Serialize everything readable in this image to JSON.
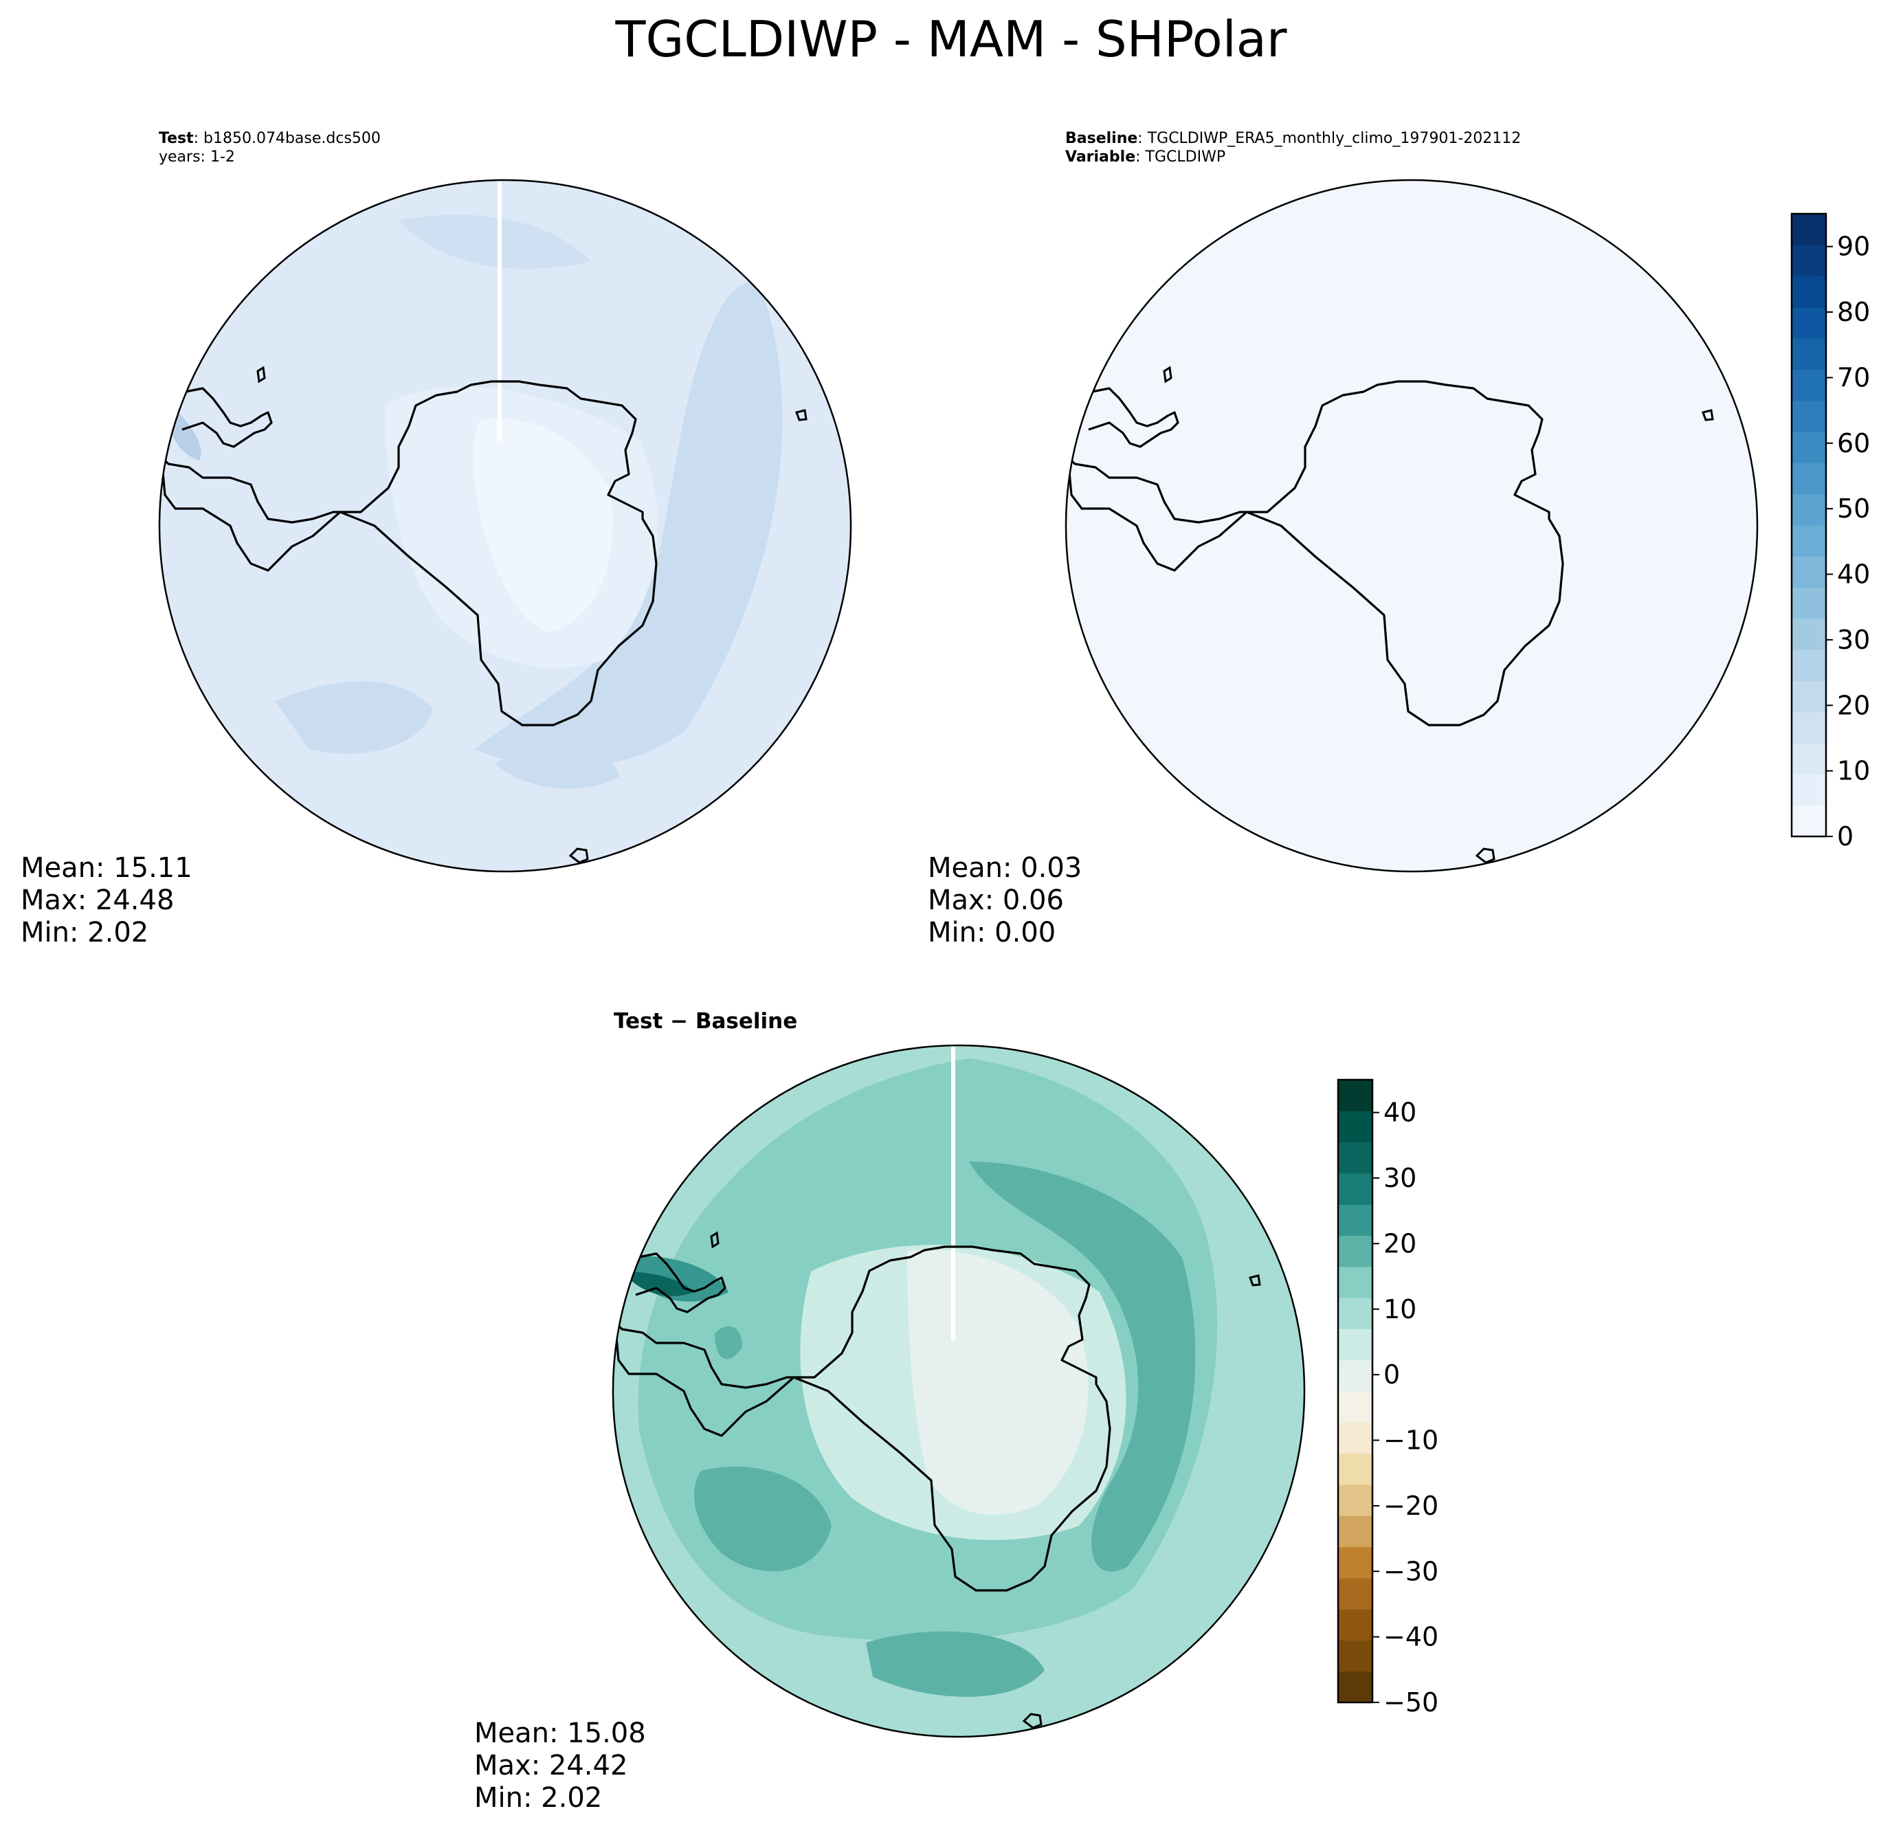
{
  "title": "TGCLDIWP - MAM - SHPolar",
  "panels": {
    "test": {
      "header": {
        "label": "Test",
        "sep": ": ",
        "case": "b1850.074base.dcs500",
        "years": "years: 1-2"
      },
      "stats": {
        "mean": "Mean: 15.11",
        "max": "Max: 24.48",
        "min": "Min:  2.02"
      }
    },
    "baseline": {
      "header": {
        "label": "Baseline",
        "sep": ": ",
        "case": "TGCLDIWP_ERA5_monthly_climo_197901-202112",
        "var_label": "Variable",
        "var_value": "TGCLDIWP"
      },
      "stats": {
        "mean": "Mean:  0.03",
        "max": "Max:  0.06",
        "min": "Min:  0.00"
      }
    },
    "diff": {
      "header": {
        "label": "Test − Baseline"
      },
      "stats": {
        "mean": "Mean: 15.08",
        "max": "Max: 24.42",
        "min": "Min:  2.02"
      }
    }
  },
  "colorbars": {
    "blues": {
      "min": 0,
      "max": 95,
      "step": 5,
      "ticks": [
        0,
        10,
        20,
        30,
        40,
        50,
        60,
        70,
        80,
        90
      ],
      "tick_labels": [
        "0",
        "10",
        "20",
        "30",
        "40",
        "50",
        "60",
        "70",
        "80",
        "90"
      ],
      "colors": [
        "#f2f7fd",
        "#e6f0fa",
        "#dbe9f6",
        "#d0e1f2",
        "#c2d9ee",
        "#b3d3e8",
        "#a2cbe2",
        "#8fc1de",
        "#7db7da",
        "#6aaed6",
        "#5ba3d0",
        "#4a98c9",
        "#3b8bc2",
        "#2e7ebc",
        "#2171b5",
        "#1764ab",
        "#0e58a2",
        "#084a91",
        "#083d7f",
        "#08306b"
      ]
    },
    "brbg": {
      "min": -50,
      "max": 45,
      "step": 5,
      "ticks": [
        -50,
        -40,
        -30,
        -20,
        -10,
        0,
        10,
        20,
        30,
        40
      ],
      "tick_labels": [
        "−50",
        "−40",
        "−30",
        "−20",
        "−10",
        "0",
        "10",
        "20",
        "30",
        "40"
      ],
      "colors": [
        "#5e3a08",
        "#7a4a0b",
        "#8f560f",
        "#a86a1f",
        "#bf812d",
        "#d2a55e",
        "#e2c489",
        "#efdcab",
        "#f5ead1",
        "#f6f1e6",
        "#e6f1ef",
        "#cdebe5",
        "#a8ddd5",
        "#87cfc2",
        "#5cb2a7",
        "#35978f",
        "#1a7d75",
        "#0a665e",
        "#01544a",
        "#003c30"
      ]
    }
  }
}
